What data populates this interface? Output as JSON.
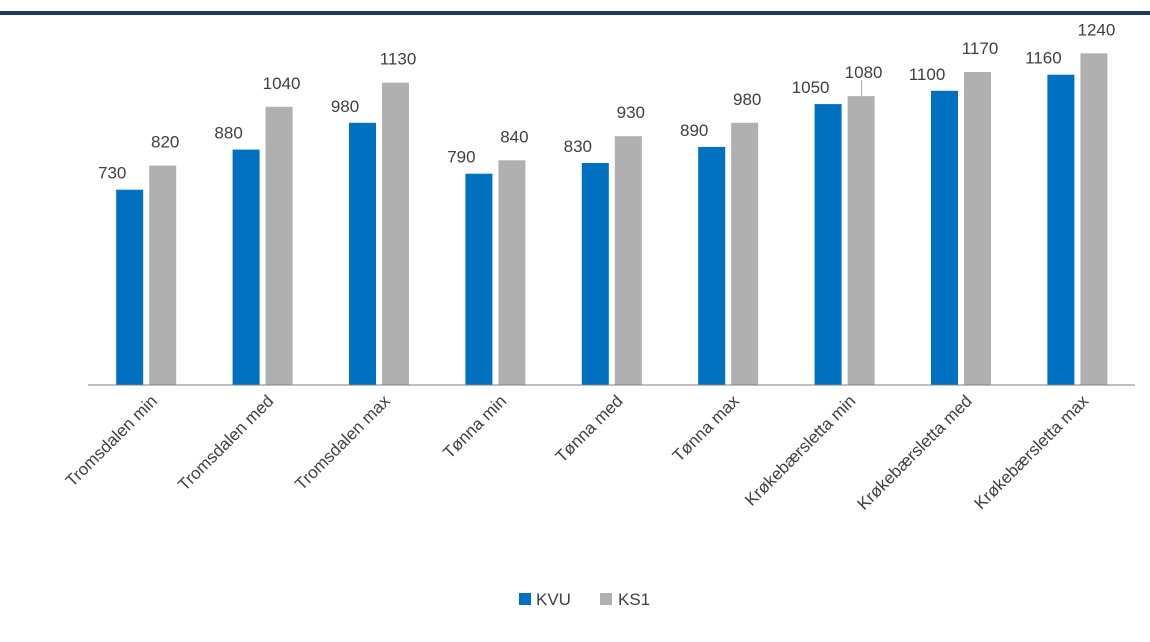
{
  "chart_data": {
    "type": "bar",
    "categories": [
      "Tromsdalen min",
      "Tromsdalen med",
      "Tromsdalen max",
      "Tønna min",
      "Tønna med",
      "Tønna max",
      "Krøkebærsletta min",
      "Krøkebærsletta med",
      "Krøkebærsletta max"
    ],
    "series": [
      {
        "name": "KVU",
        "color": "#0070C0",
        "values": [
          730,
          880,
          980,
          790,
          830,
          890,
          1050,
          1100,
          1160
        ]
      },
      {
        "name": "KS1",
        "color": "#B0B0B0",
        "values": [
          820,
          1040,
          1130,
          840,
          930,
          980,
          1080,
          1170,
          1240
        ]
      }
    ],
    "ylim": [
      0,
      1400
    ],
    "data_labels": true,
    "grid": false,
    "legend_position": "bottom",
    "colors": {
      "top_rule": "#1F3864",
      "axis": "#7F7F7F",
      "text": "#404040"
    }
  }
}
